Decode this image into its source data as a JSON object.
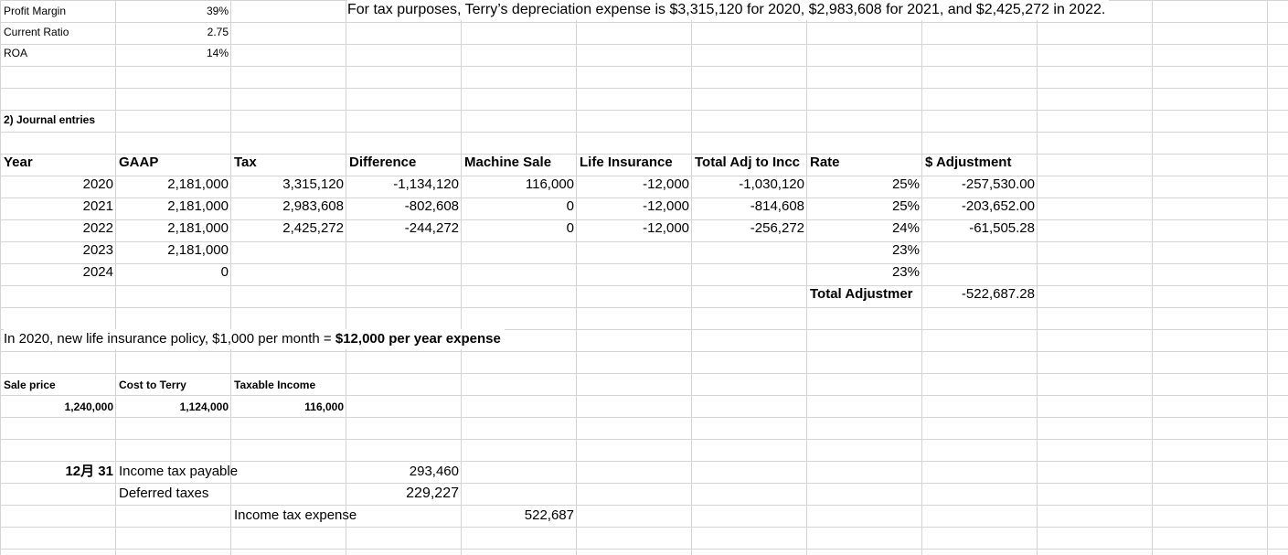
{
  "metrics": [
    {
      "label": "Profit Margin",
      "value": "39%"
    },
    {
      "label": "Current Ratio",
      "value": "2.75"
    },
    {
      "label": "ROA",
      "value": "14%"
    }
  ],
  "note_top": "For tax purposes, Terry’s depreciation expense is $3,315,120 for 2020, $2,983,608 for 2021, and $2,425,272 in 2022.",
  "section_title": "2) Journal entries",
  "table": {
    "headers": [
      "Year",
      "GAAP",
      "Tax",
      "Difference",
      "Machine Sale",
      "Life Insurance",
      "Total Adj to Incc",
      "Rate",
      "",
      "$ Adjustment"
    ],
    "rows": [
      {
        "year": "2020",
        "gaap": "2,181,000",
        "tax": "3,315,120",
        "diff": "-1,134,120",
        "machine": "116,000",
        "life": "-12,000",
        "total": "-1,030,120",
        "rate": "25%",
        "adj": "-257,530.00"
      },
      {
        "year": "2021",
        "gaap": "2,181,000",
        "tax": "2,983,608",
        "diff": "-802,608",
        "machine": "0",
        "life": "-12,000",
        "total": "-814,608",
        "rate": "25%",
        "adj": "-203,652.00"
      },
      {
        "year": "2022",
        "gaap": "2,181,000",
        "tax": "2,425,272",
        "diff": "-244,272",
        "machine": "0",
        "life": "-12,000",
        "total": "-256,272",
        "rate": "24%",
        "adj": "-61,505.28"
      },
      {
        "year": "2023",
        "gaap": "2,181,000",
        "tax": "",
        "diff": "",
        "machine": "",
        "life": "",
        "total": "",
        "rate": "23%",
        "adj": ""
      },
      {
        "year": "2024",
        "gaap": "0",
        "tax": "",
        "diff": "",
        "machine": "",
        "life": "",
        "total": "",
        "rate": "23%",
        "adj": ""
      }
    ],
    "total_label": "Total Adjustmer",
    "total_value": "-522,687.28"
  },
  "insurance_note": {
    "prefix": "In 2020, new life insurance policy, $1,000 per month = ",
    "bold": "$12,000 per year expense"
  },
  "sale": {
    "headers": [
      "Sale price",
      "Cost to Terry",
      "Taxable Income"
    ],
    "values": [
      "1,240,000",
      "1,124,000",
      "116,000"
    ]
  },
  "journal": {
    "date": "12月 31",
    "line1_label": "Income tax payable",
    "line1_value": "293,460",
    "line2_label": "Deferred taxes",
    "line2_value": "229,227",
    "line3_label": "Income tax expense",
    "line3_value": "522,687"
  }
}
